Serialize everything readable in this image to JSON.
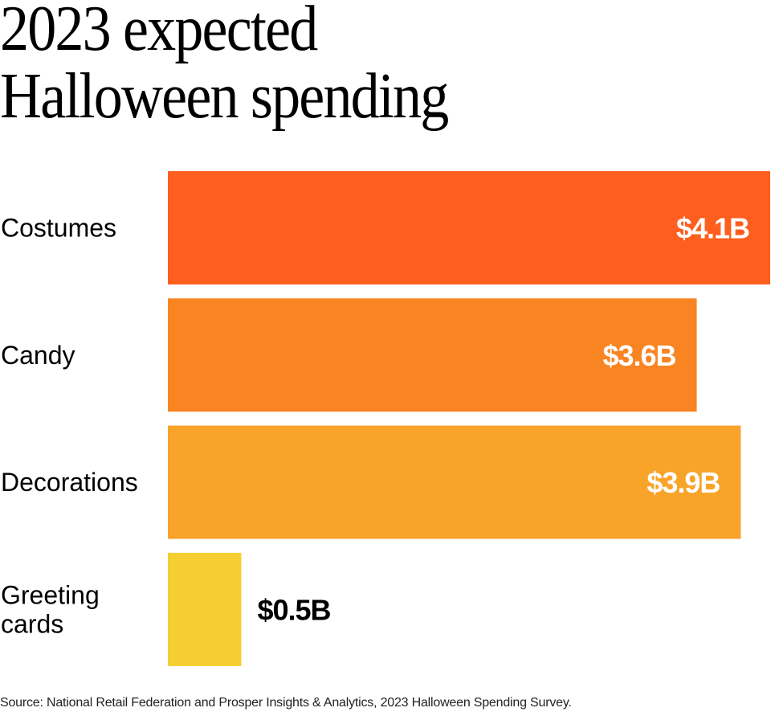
{
  "chart_data": {
    "type": "bar",
    "orientation": "horizontal",
    "title": "2023 expected Halloween spending",
    "title_lines": [
      "2023 expected",
      "Halloween spending"
    ],
    "categories": [
      "Costumes",
      "Candy",
      "Decorations",
      "Greeting cards"
    ],
    "category_label_lines": [
      [
        "Costumes"
      ],
      [
        "Candy"
      ],
      [
        "Decorations"
      ],
      [
        "Greeting",
        "cards"
      ]
    ],
    "values": [
      4.1,
      3.6,
      3.9,
      0.5
    ],
    "value_labels": [
      "$4.1B",
      "$3.6B",
      "$3.9B",
      "$0.5B"
    ],
    "units": "billion USD",
    "colors": [
      "#fe5e1e",
      "#f98422",
      "#f8a42b",
      "#f5cf31"
    ],
    "xlabel": "",
    "ylabel": "",
    "xlim": [
      0,
      4.1
    ],
    "grid": false,
    "legend": "none"
  },
  "source": "Source: National Retail Federation and Prosper Insights & Analytics, 2023 Halloween Spending Survey."
}
